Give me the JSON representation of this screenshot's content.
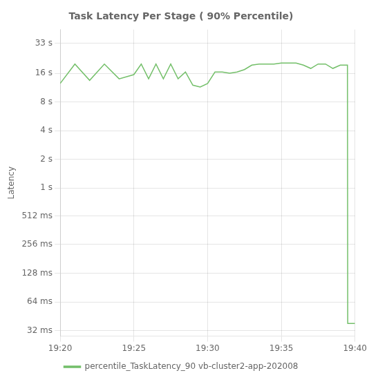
{
  "chart_data": {
    "type": "line",
    "title": "Task Latency Per Stage ( 90% Percentile)",
    "ylabel": "Latency",
    "x": [
      0,
      1.0,
      2.0,
      3.0,
      4.0,
      5.0,
      5.5,
      6.0,
      6.5,
      7.0,
      7.5,
      8.0,
      8.5,
      9.0,
      9.5,
      10.0,
      10.5,
      11.0,
      11.5,
      12.0,
      12.5,
      13.0,
      13.5,
      14.0,
      14.5,
      15.0,
      15.5,
      16.0,
      16.5,
      17.0,
      17.5,
      18.0,
      18.5,
      19.0,
      19.49,
      19.51,
      20.0
    ],
    "series": [
      {
        "name": "percentile_TaskLatency_90 vb-cluster2-app-202008",
        "color": "#73bf69",
        "values": [
          12.5,
          20.0,
          13.5,
          20.0,
          14.0,
          15.5,
          20.0,
          14.0,
          20.0,
          14.0,
          20.0,
          14.0,
          16.5,
          12.0,
          11.5,
          12.5,
          16.5,
          16.5,
          16.0,
          16.5,
          17.5,
          19.5,
          20.0,
          20.0,
          20.0,
          20.5,
          20.5,
          20.5,
          19.5,
          18.0,
          20.0,
          20.0,
          18.0,
          19.5,
          19.5,
          0.038,
          0.038
        ]
      }
    ],
    "xlim": [
      0,
      20
    ],
    "xticks": [
      {
        "value": 0,
        "label": "19:20"
      },
      {
        "value": 5,
        "label": "19:25"
      },
      {
        "value": 10,
        "label": "19:30"
      },
      {
        "value": 15,
        "label": "19:35"
      },
      {
        "value": 20,
        "label": "19:40"
      }
    ],
    "ylim": [
      0.028,
      46
    ],
    "yticks": [
      {
        "value": 33,
        "label": "33 s"
      },
      {
        "value": 16,
        "label": "16 s"
      },
      {
        "value": 8,
        "label": "8 s"
      },
      {
        "value": 4,
        "label": "4 s"
      },
      {
        "value": 2,
        "label": "2 s"
      },
      {
        "value": 1,
        "label": "1 s"
      },
      {
        "value": 0.512,
        "label": "512 ms"
      },
      {
        "value": 0.256,
        "label": "256 ms"
      },
      {
        "value": 0.128,
        "label": "128 ms"
      },
      {
        "value": 0.064,
        "label": "64 ms"
      },
      {
        "value": 0.032,
        "label": "32 ms"
      }
    ],
    "log": "y",
    "grid": true,
    "legend": "bottom"
  }
}
